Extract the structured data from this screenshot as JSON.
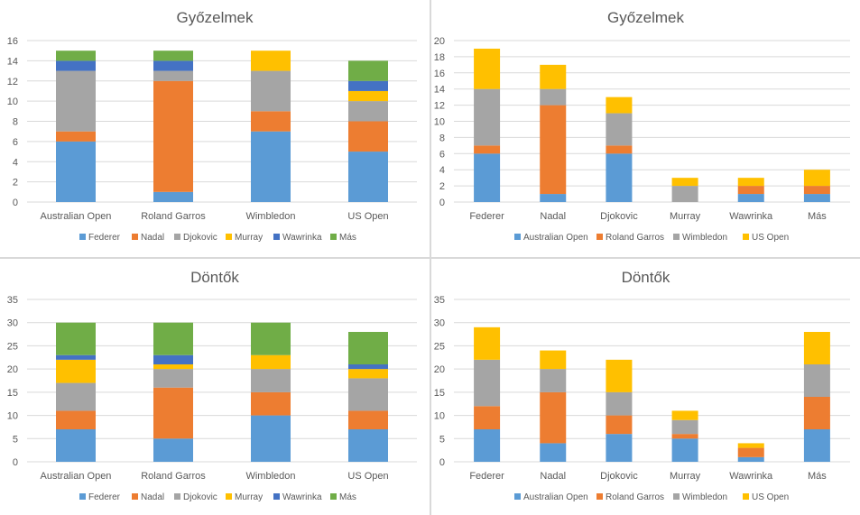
{
  "colors": {
    "Federer": "#5b9bd5",
    "Nadal": "#ed7d31",
    "Djokovic": "#a5a5a5",
    "Murray": "#ffc000",
    "Wawrinka": "#4472c4",
    "Más": "#70ad47",
    "Australian Open": "#5b9bd5",
    "Roland Garros": "#ed7d31",
    "Wimbledon": "#a5a5a5",
    "US Open": "#ffc000"
  },
  "chart_data": [
    {
      "type": "bar",
      "stacked": true,
      "title": "Győzelmek",
      "categories": [
        "Australian Open",
        "Roland Garros",
        "Wimbledon",
        "US Open"
      ],
      "ylim": [
        0,
        16
      ],
      "yticks": [
        "0",
        "2",
        "4",
        "6",
        "8",
        "10",
        "12",
        "14",
        "16"
      ],
      "grid": true,
      "legend": "bottom",
      "series": [
        {
          "name": "Federer",
          "values": [
            6,
            1,
            7,
            5
          ]
        },
        {
          "name": "Nadal",
          "values": [
            1,
            11,
            2,
            3
          ]
        },
        {
          "name": "Djokovic",
          "values": [
            6,
            1,
            4,
            2
          ]
        },
        {
          "name": "Murray",
          "values": [
            0,
            0,
            2,
            1
          ]
        },
        {
          "name": "Wawrinka",
          "values": [
            1,
            1,
            0,
            1
          ]
        },
        {
          "name": "Más",
          "values": [
            1,
            1,
            0,
            2
          ]
        }
      ]
    },
    {
      "type": "bar",
      "stacked": true,
      "title": "Győzelmek",
      "categories": [
        "Federer",
        "Nadal",
        "Djokovic",
        "Murray",
        "Wawrinka",
        "Más"
      ],
      "ylim": [
        0,
        20
      ],
      "yticks": [
        "0",
        "2",
        "4",
        "6",
        "8",
        "10",
        "12",
        "14",
        "16",
        "18",
        "20"
      ],
      "grid": true,
      "legend": "bottom",
      "series": [
        {
          "name": "Australian Open",
          "values": [
            6,
            1,
            6,
            0,
            1,
            1
          ]
        },
        {
          "name": "Roland Garros",
          "values": [
            1,
            11,
            1,
            0,
            1,
            1
          ]
        },
        {
          "name": "Wimbledon",
          "values": [
            7,
            2,
            4,
            2,
            0,
            0
          ]
        },
        {
          "name": "US Open",
          "values": [
            5,
            3,
            2,
            1,
            1,
            2
          ]
        }
      ]
    },
    {
      "type": "bar",
      "stacked": true,
      "title": "Döntők",
      "categories": [
        "Australian Open",
        "Roland Garros",
        "Wimbledon",
        "US Open"
      ],
      "ylim": [
        0,
        35
      ],
      "yticks": [
        "0",
        "5",
        "10",
        "15",
        "20",
        "25",
        "30",
        "35"
      ],
      "grid": true,
      "legend": "bottom",
      "series": [
        {
          "name": "Federer",
          "values": [
            7,
            5,
            10,
            7
          ]
        },
        {
          "name": "Nadal",
          "values": [
            4,
            11,
            5,
            4
          ]
        },
        {
          "name": "Djokovic",
          "values": [
            6,
            4,
            5,
            7
          ]
        },
        {
          "name": "Murray",
          "values": [
            5,
            1,
            3,
            2
          ]
        },
        {
          "name": "Wawrinka",
          "values": [
            1,
            2,
            0,
            1
          ]
        },
        {
          "name": "Más",
          "values": [
            7,
            7,
            7,
            7
          ]
        }
      ]
    },
    {
      "type": "bar",
      "stacked": true,
      "title": "Döntők",
      "categories": [
        "Federer",
        "Nadal",
        "Djokovic",
        "Murray",
        "Wawrinka",
        "Más"
      ],
      "ylim": [
        0,
        35
      ],
      "yticks": [
        "0",
        "5",
        "10",
        "15",
        "20",
        "25",
        "30",
        "35"
      ],
      "grid": true,
      "legend": "bottom",
      "series": [
        {
          "name": "Australian Open",
          "values": [
            7,
            4,
            6,
            5,
            1,
            7
          ]
        },
        {
          "name": "Roland Garros",
          "values": [
            5,
            11,
            4,
            1,
            2,
            7
          ]
        },
        {
          "name": "Wimbledon",
          "values": [
            10,
            5,
            5,
            3,
            0,
            7
          ]
        },
        {
          "name": "US Open",
          "values": [
            7,
            4,
            7,
            2,
            1,
            7
          ]
        }
      ]
    }
  ]
}
